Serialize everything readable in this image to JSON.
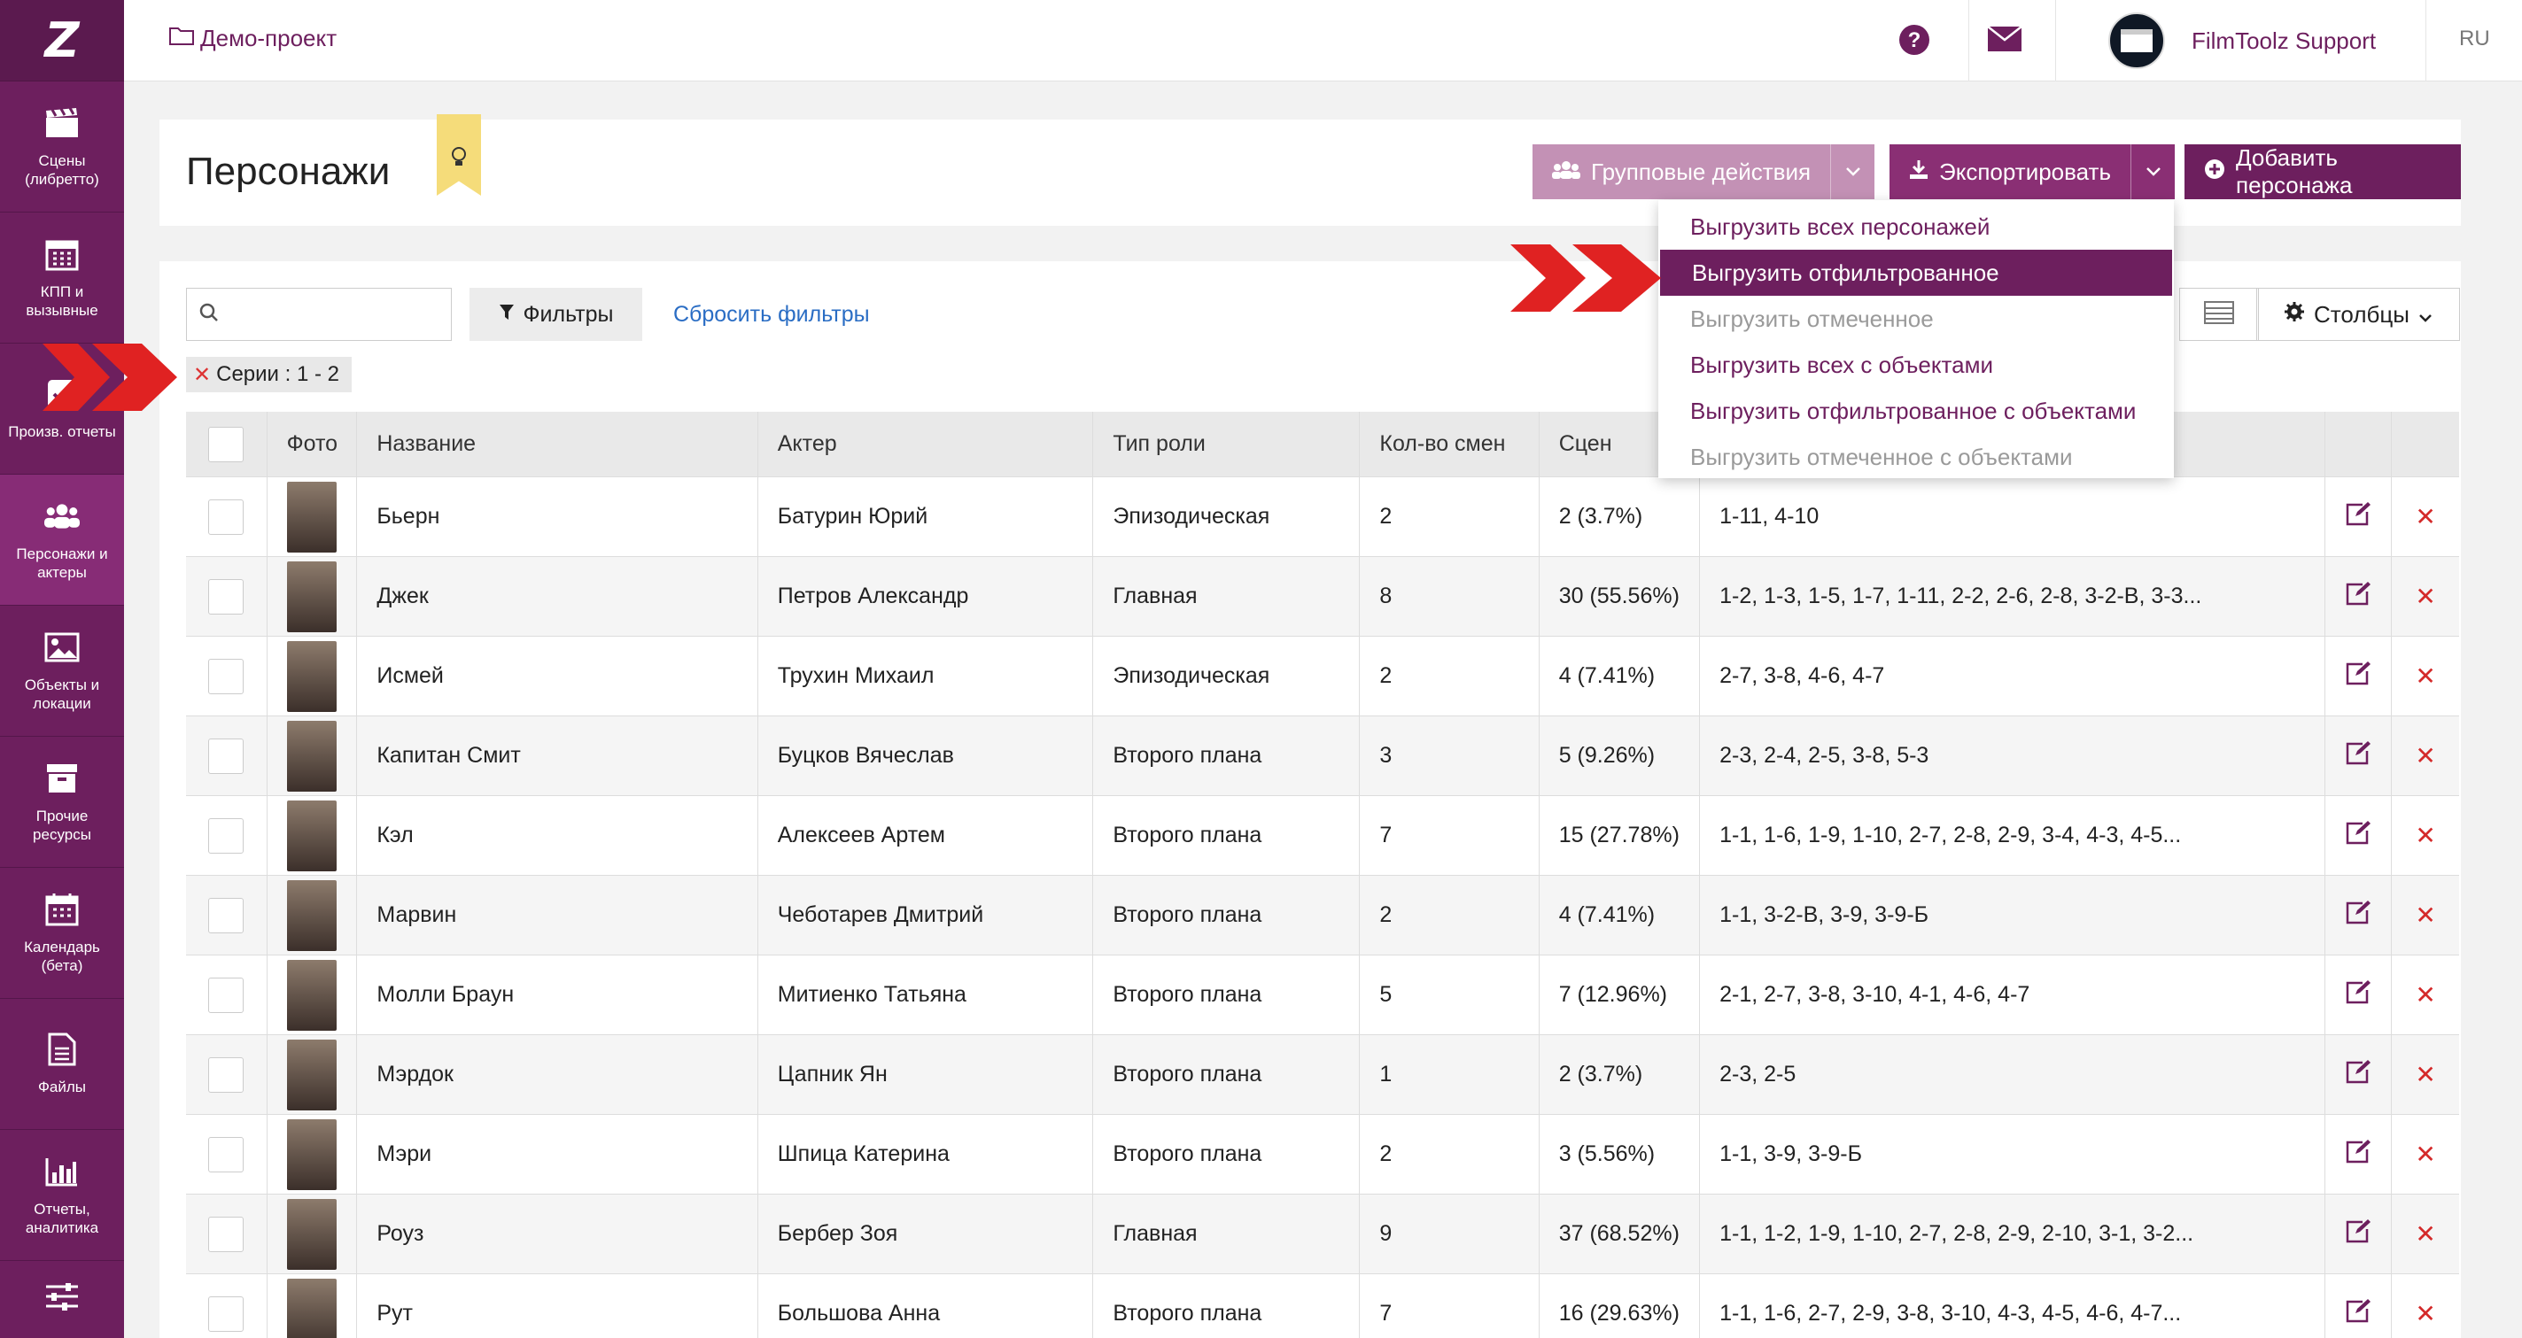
{
  "app": {
    "logo": "Z",
    "project": "Демо-проект",
    "support_name": "FilmToolz Support",
    "language": "RU",
    "accent": "#6d1f5e"
  },
  "sidebar": {
    "items": [
      {
        "label": "Сцены\n(либретто)",
        "icon": "clapperboard-icon"
      },
      {
        "label": "КПП и\nвызывные",
        "icon": "calendar-grid-icon"
      },
      {
        "label": "Произв. отчеты",
        "icon": "checklist-icon"
      },
      {
        "label": "Персонажи и\nактеры",
        "icon": "users-icon",
        "active": true
      },
      {
        "label": "Объекты и\nлокации",
        "icon": "image-icon"
      },
      {
        "label": "Прочие\nресурсы",
        "icon": "box-icon"
      },
      {
        "label": "Календарь\n(бета)",
        "icon": "calendar-icon"
      },
      {
        "label": "Файлы",
        "icon": "file-icon"
      },
      {
        "label": "Отчеты,\nаналитика",
        "icon": "bar-chart-icon"
      },
      {
        "label": "",
        "icon": "sliders-icon"
      }
    ]
  },
  "header": {
    "title": "Персонажи",
    "group_actions": "Групповые действия",
    "export": "Экспортировать",
    "add": "Добавить персонажа"
  },
  "export_menu": [
    {
      "label": "Выгрузить всех персонажей",
      "state": "normal"
    },
    {
      "label": "Выгрузить отфильтрованное",
      "state": "active"
    },
    {
      "label": "Выгрузить отмеченное",
      "state": "disabled"
    },
    {
      "label": "Выгрузить всех с объектами",
      "state": "normal"
    },
    {
      "label": "Выгрузить отфильтрованное с объектами",
      "state": "normal"
    },
    {
      "label": "Выгрузить отмеченное с объектами",
      "state": "disabled"
    }
  ],
  "toolbar": {
    "search_value": "",
    "filters": "Фильтры",
    "reset_filters": "Сбросить фильтры",
    "columns": "Столбцы",
    "active_filter": "Серии :  1 - 2"
  },
  "table": {
    "columns": [
      "Фото",
      "Название",
      "Актер",
      "Тип роли",
      "Кол-во смен",
      "Сцен"
    ],
    "rows": [
      {
        "name": "Бьерн",
        "actor": "Батурин Юрий",
        "role": "Эпизодическая",
        "shifts": "2",
        "scenes": "2 (3.7%)",
        "list": "1-11, 4-10"
      },
      {
        "name": "Джек",
        "actor": "Петров Александр",
        "role": "Главная",
        "shifts": "8",
        "scenes": "30 (55.56%)",
        "list": "1-2, 1-3, 1-5, 1-7, 1-11, 2-2, 2-6, 2-8, 3-2-В, 3-3..."
      },
      {
        "name": "Исмей",
        "actor": "Трухин Михаил",
        "role": "Эпизодическая",
        "shifts": "2",
        "scenes": "4 (7.41%)",
        "list": "2-7, 3-8, 4-6, 4-7"
      },
      {
        "name": "Капитан Смит",
        "actor": "Буцков Вячеслав",
        "role": "Второго плана",
        "shifts": "3",
        "scenes": "5 (9.26%)",
        "list": "2-3, 2-4, 2-5, 3-8, 5-3"
      },
      {
        "name": "Кэл",
        "actor": "Алексеев Артем",
        "role": "Второго плана",
        "shifts": "7",
        "scenes": "15 (27.78%)",
        "list": "1-1, 1-6, 1-9, 1-10, 2-7, 2-8, 2-9, 3-4, 4-3, 4-5..."
      },
      {
        "name": "Марвин",
        "actor": "Чеботарев Дмитрий",
        "role": "Второго плана",
        "shifts": "2",
        "scenes": "4 (7.41%)",
        "list": "1-1, 3-2-В, 3-9, 3-9-Б"
      },
      {
        "name": "Молли Браун",
        "actor": "Митиенко Татьяна",
        "role": "Второго плана",
        "shifts": "5",
        "scenes": "7 (12.96%)",
        "list": "2-1, 2-7, 3-8, 3-10, 4-1, 4-6, 4-7"
      },
      {
        "name": "Мэрдок",
        "actor": "Цапник Ян",
        "role": "Второго плана",
        "shifts": "1",
        "scenes": "2 (3.7%)",
        "list": "2-3, 2-5"
      },
      {
        "name": "Мэри",
        "actor": "Шпица Катерина",
        "role": "Второго плана",
        "shifts": "2",
        "scenes": "3 (5.56%)",
        "list": "1-1, 3-9, 3-9-Б"
      },
      {
        "name": "Роуз",
        "actor": "Бербер Зоя",
        "role": "Главная",
        "shifts": "9",
        "scenes": "37 (68.52%)",
        "list": "1-1, 1-2, 1-9, 1-10, 2-7, 2-8, 2-9, 2-10, 3-1, 3-2..."
      },
      {
        "name": "Рут",
        "actor": "Большова Анна",
        "role": "Второго плана",
        "shifts": "7",
        "scenes": "16 (29.63%)",
        "list": "1-1, 1-6, 2-7, 2-9, 3-8, 3-10, 4-3, 4-5, 4-6, 4-7..."
      }
    ]
  }
}
